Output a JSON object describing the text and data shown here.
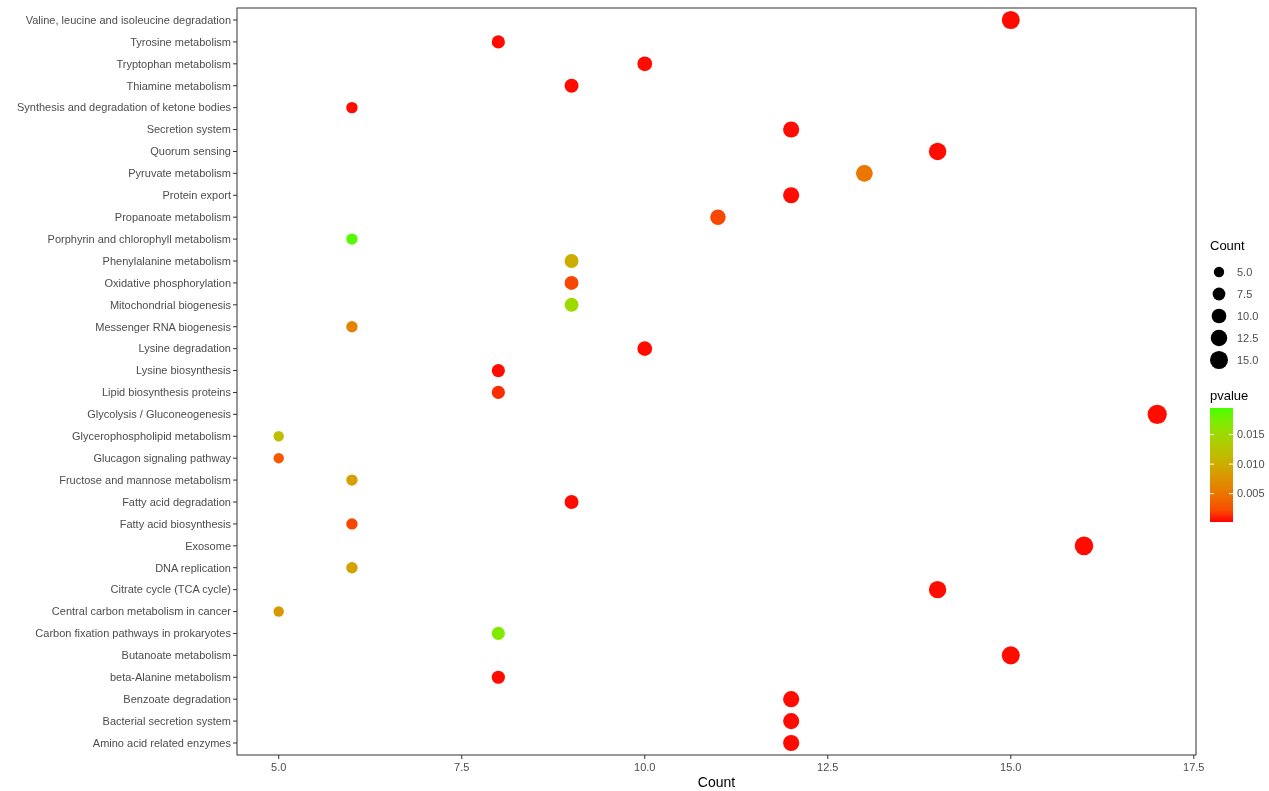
{
  "chart_data": {
    "type": "bubble",
    "xlabel": "Count",
    "legend_title": "Count",
    "clabel": "pvalue",
    "categories": [
      "Valine, leucine and isoleucine degradation",
      "Tyrosine metabolism",
      "Tryptophan metabolism",
      "Thiamine metabolism",
      "Synthesis and degradation of ketone bodies",
      "Secretion system",
      "Quorum sensing",
      "Pyruvate metabolism",
      "Protein export",
      "Propanoate metabolism",
      "Porphyrin and chlorophyll metabolism",
      "Phenylalanine metabolism",
      "Oxidative phosphorylation",
      "Mitochondrial biogenesis",
      "Messenger RNA biogenesis",
      "Lysine degradation",
      "Lysine biosynthesis",
      "Lipid biosynthesis proteins",
      "Glycolysis / Gluconeogenesis",
      "Glycerophospholipid metabolism",
      "Glucagon signaling pathway",
      "Fructose and mannose metabolism",
      "Fatty acid degradation",
      "Fatty acid biosynthesis",
      "Exosome",
      "DNA replication",
      "Citrate cycle (TCA cycle)",
      "Central carbon metabolism in cancer",
      "Carbon fixation pathways in prokaryotes",
      "Butanoate metabolism",
      "beta-Alanine metabolism",
      "Benzoate degradation",
      "Bacterial secretion system",
      "Amino acid related enzymes"
    ],
    "orientation": "horizontal",
    "values": [
      15,
      8,
      10,
      9,
      6,
      12,
      14,
      13,
      12,
      11,
      6,
      9,
      9,
      9,
      6,
      10,
      8,
      8,
      17,
      5,
      5,
      6,
      9,
      6,
      16,
      6,
      14,
      5,
      8,
      15,
      8,
      12,
      12,
      12
    ],
    "sizes": [
      15,
      8,
      10,
      9,
      6,
      12,
      14,
      13,
      12,
      11,
      6,
      9,
      9,
      9,
      6,
      10,
      8,
      8,
      17,
      5,
      5,
      6,
      9,
      6,
      16,
      6,
      14,
      5,
      8,
      15,
      8,
      12,
      12,
      12
    ],
    "cvalues": [
      0.0003,
      0.0003,
      0.0003,
      0.0003,
      0.0003,
      0.0003,
      0.0003,
      0.005,
      0.0003,
      0.002,
      0.019,
      0.01,
      0.002,
      0.015,
      0.006,
      0.0003,
      0.0003,
      0.001,
      0.0003,
      0.012,
      0.003,
      0.009,
      0.0003,
      0.002,
      0.0003,
      0.009,
      0.0003,
      0.008,
      0.017,
      0.0003,
      0.0003,
      0.0003,
      0.0003,
      0.0003
    ],
    "size_legend": [
      {
        "value": 5,
        "label": "5.0"
      },
      {
        "value": 7.5,
        "label": "7.5"
      },
      {
        "value": 10,
        "label": "10.0"
      },
      {
        "value": 12.5,
        "label": "12.5"
      },
      {
        "value": 15,
        "label": "15.0"
      }
    ],
    "xlim": [
      4.43,
      17.53
    ],
    "xticks": [
      {
        "value": 5,
        "label": "5.0"
      },
      {
        "value": 7.5,
        "label": "7.5"
      },
      {
        "value": 10,
        "label": "10.0"
      },
      {
        "value": 12.5,
        "label": "12.5"
      },
      {
        "value": 15,
        "label": "15.0"
      },
      {
        "value": 17.5,
        "label": "17.5"
      }
    ],
    "clim": [
      0.0002,
      0.0195
    ],
    "cticks": [
      {
        "value": 0.005,
        "label": "0.005"
      },
      {
        "value": 0.01,
        "label": "0.010"
      },
      {
        "value": 0.015,
        "label": "0.015"
      }
    ],
    "grid": false
  }
}
